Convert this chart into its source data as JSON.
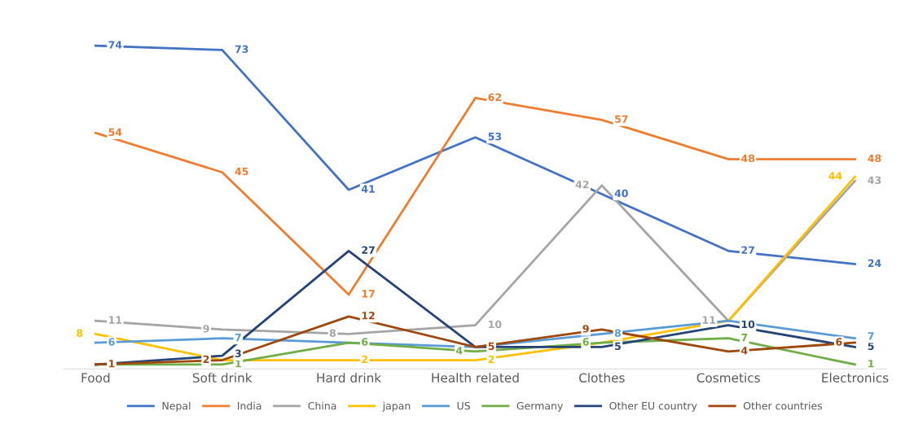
{
  "chart_data": {
    "type": "line",
    "categories": [
      "Food",
      "Soft drink",
      "Hard drink",
      "Health related",
      "Clothes",
      "Cosmetics",
      "Electronics"
    ],
    "series": [
      {
        "name": "Nepal",
        "color": "#4472c4",
        "values": [
          74,
          73,
          41,
          53,
          40,
          27,
          24
        ],
        "value_labels": [
          "74",
          "73",
          "41",
          "53",
          "40",
          "27",
          "24"
        ]
      },
      {
        "name": "India",
        "color": "#ed7d31",
        "values": [
          54,
          45,
          17,
          62,
          57,
          48,
          48
        ],
        "value_labels": [
          "54",
          "45",
          "17",
          "62",
          "57",
          "48",
          "48"
        ]
      },
      {
        "name": "China",
        "color": "#a5a5a5",
        "values": [
          11,
          9,
          8,
          10,
          42,
          11,
          43
        ],
        "value_labels": [
          "11",
          "9",
          "8",
          "10",
          "42",
          "11",
          "43"
        ]
      },
      {
        "name": "japan",
        "color": "#ffc000",
        "values": [
          8,
          2,
          2,
          2,
          6,
          11,
          44
        ],
        "value_labels": [
          "8",
          null,
          "2",
          "2",
          null,
          null,
          "44"
        ]
      },
      {
        "name": "US",
        "color": "#5b9bd5",
        "values": [
          6,
          7,
          6,
          5,
          8,
          11,
          7
        ],
        "value_labels": [
          "6",
          "7",
          null,
          null,
          "8",
          null,
          "7"
        ]
      },
      {
        "name": "Germany",
        "color": "#70ad47",
        "values": [
          1,
          1,
          6,
          4,
          6,
          7,
          1
        ],
        "value_labels": [
          null,
          "1",
          "6",
          "4",
          "6",
          "7",
          "1"
        ]
      },
      {
        "name": "Other EU country",
        "color": "#264478",
        "values": [
          1,
          3,
          27,
          5,
          5,
          10,
          5
        ],
        "value_labels": [
          null,
          "3",
          "27",
          null,
          "5",
          "10",
          "5"
        ]
      },
      {
        "name": "Other countries",
        "color": "#9e480e",
        "values": [
          1,
          2,
          12,
          5,
          9,
          4,
          6
        ],
        "value_labels": [
          "1",
          "2",
          "12",
          "5",
          "9",
          "4",
          "6"
        ]
      }
    ],
    "legend": "bottom",
    "line_style": "solid",
    "grid": false
  }
}
